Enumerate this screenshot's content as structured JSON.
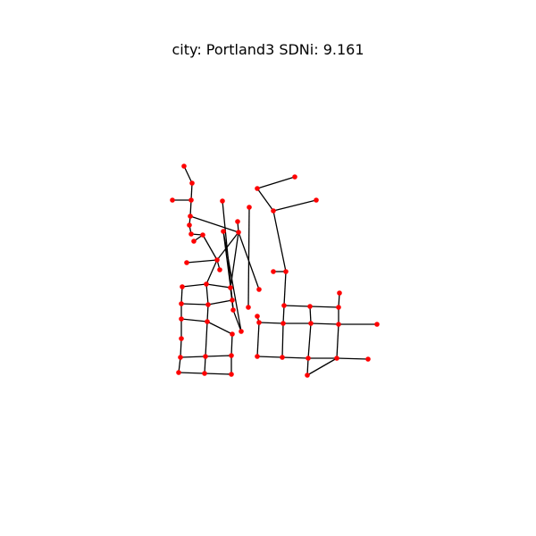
{
  "title": "city: Portland3  SDNi: 9.161",
  "style": {
    "node_color": "#ff0000",
    "edge_color": "#000000",
    "background": "#ffffff"
  }
}
